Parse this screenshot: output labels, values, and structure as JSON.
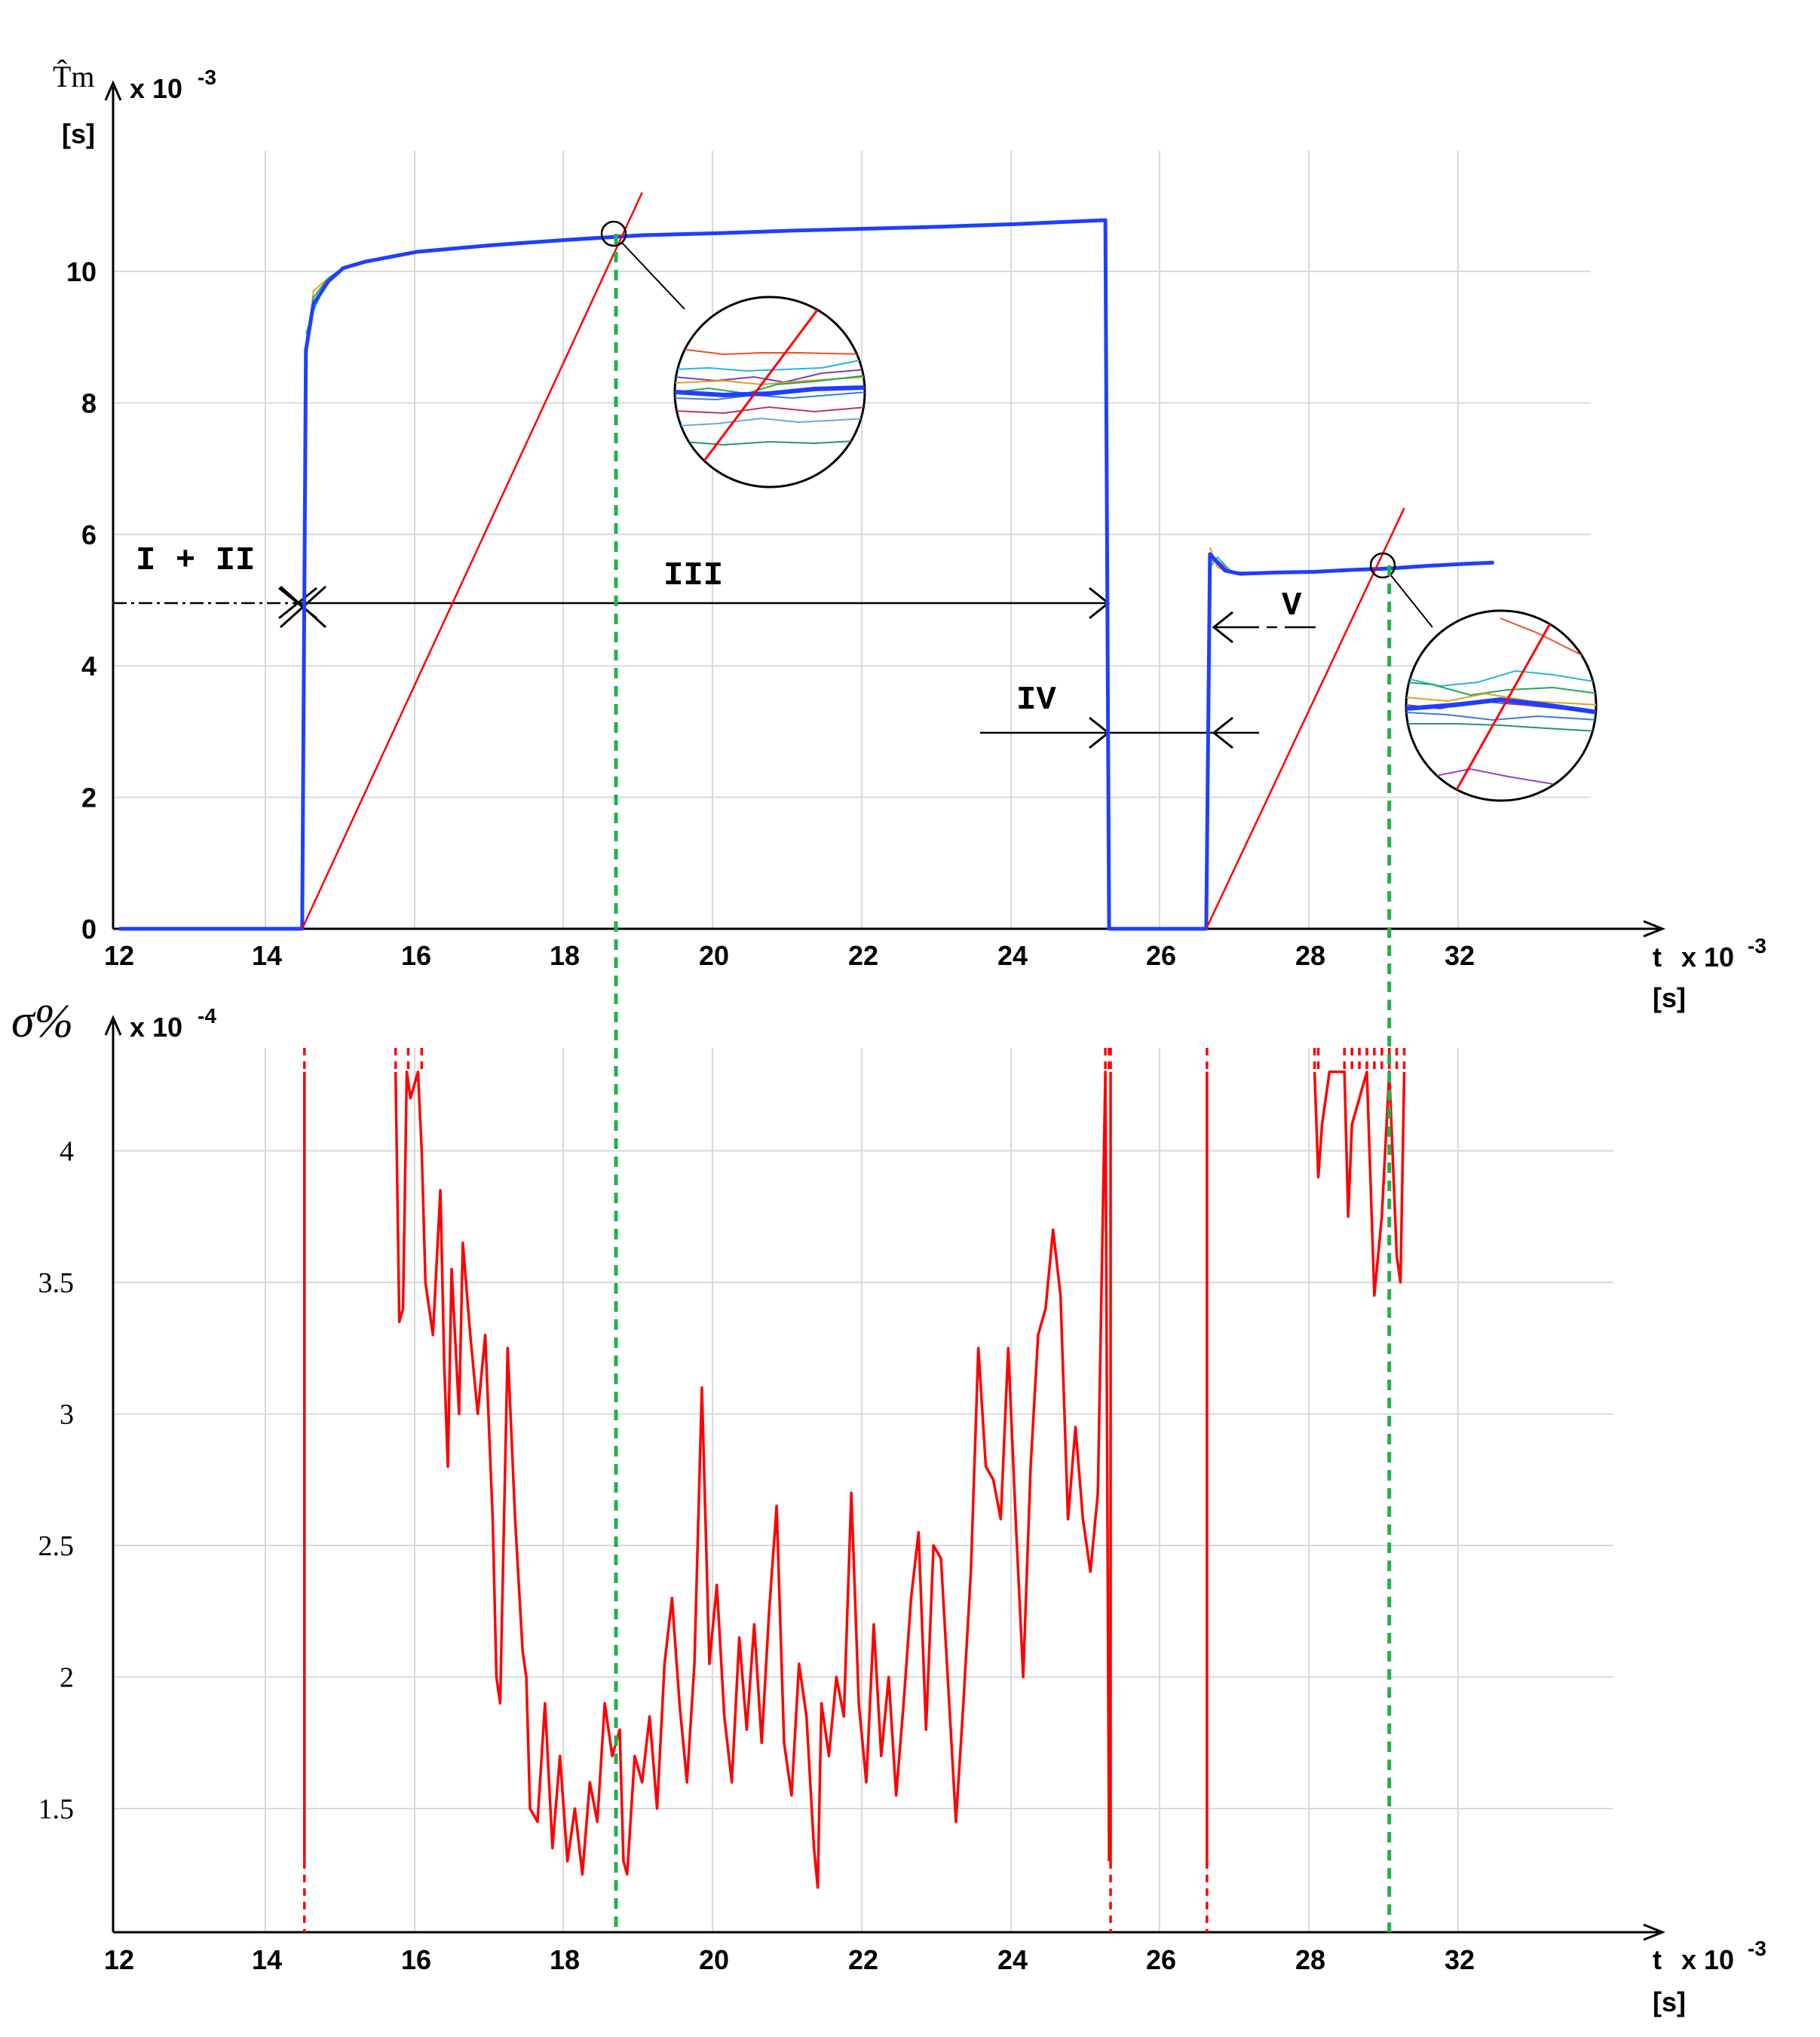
{
  "chart_data": [
    {
      "type": "line",
      "ylabel": "T̂m",
      "ylabel_unit": "[s]",
      "y_scale_text": "x 10",
      "y_scale_exp": "-3",
      "xlabel": "t",
      "x_scale_text": "x 10",
      "x_scale_exp": "-3",
      "x_unit": "[s]",
      "xlim": [
        12,
        32
      ],
      "ylim": [
        0,
        11
      ],
      "x_ticks": [
        "12",
        "14",
        "16",
        "18",
        "20",
        "22",
        "24",
        "26",
        "28",
        "32"
      ],
      "y_ticks": [
        "0",
        "2",
        "4",
        "6",
        "8",
        "10"
      ],
      "grid": true,
      "series": [
        {
          "color": "#1f3fff",
          "points": [
            [
              12,
              0
            ],
            [
              14.45,
              0
            ],
            [
              14.5,
              8.8
            ],
            [
              14.6,
              9.5
            ],
            [
              14.8,
              9.85
            ],
            [
              15.0,
              10.05
            ],
            [
              15.3,
              10.15
            ],
            [
              16.0,
              10.3
            ],
            [
              17.0,
              10.4
            ],
            [
              18.0,
              10.48
            ],
            [
              19.0,
              10.55
            ],
            [
              20.0,
              10.58
            ],
            [
              21.0,
              10.62
            ],
            [
              22.0,
              10.65
            ],
            [
              23.0,
              10.68
            ],
            [
              24.0,
              10.72
            ],
            [
              25.2,
              10.78
            ],
            [
              25.25,
              0
            ],
            [
              26.55,
              0
            ],
            [
              26.6,
              5.7
            ],
            [
              26.8,
              5.45
            ],
            [
              27.0,
              5.4
            ],
            [
              27.5,
              5.42
            ],
            [
              28.0,
              5.43
            ],
            [
              28.5,
              5.46
            ],
            [
              29.0,
              5.48
            ],
            [
              29.5,
              5.52
            ],
            [
              30.0,
              5.55
            ],
            [
              30.4,
              5.57
            ]
          ]
        },
        {
          "color": "#ff0000",
          "points": [
            [
              14.45,
              0
            ],
            [
              19.0,
              11.2
            ]
          ]
        },
        {
          "color": "#ff0000",
          "points": [
            [
              26.55,
              0
            ],
            [
              29.2,
              6.4
            ]
          ]
        }
      ],
      "markers_at_x": [
        18.65,
        29.0
      ],
      "annotations": [
        "I + II",
        "III",
        "IV",
        "V"
      ]
    },
    {
      "type": "line",
      "ylabel": "σ%",
      "y_scale_text": "x 10",
      "y_scale_exp": "-4",
      "xlabel": "t",
      "x_scale_text": "x 10",
      "x_scale_exp": "-3",
      "x_unit": "[s]",
      "xlim": [
        12,
        32
      ],
      "ylim": [
        1.1,
        4.4
      ],
      "x_ticks": [
        "12",
        "14",
        "16",
        "18",
        "20",
        "22",
        "24",
        "26",
        "28",
        "32"
      ],
      "y_ticks": [
        "1.5",
        "2",
        "2.5",
        "3",
        "3.5",
        "4"
      ],
      "grid": true,
      "series": [
        {
          "color": "#ff0000",
          "points": [
            [
              15.7,
              4.3
            ],
            [
              15.75,
              3.35
            ],
            [
              15.8,
              3.4
            ],
            [
              15.85,
              4.3
            ],
            [
              15.9,
              4.2
            ],
            [
              16.0,
              4.3
            ],
            [
              16.05,
              4.0
            ],
            [
              16.1,
              3.5
            ],
            [
              16.2,
              3.3
            ],
            [
              16.3,
              3.85
            ],
            [
              16.35,
              3.2
            ],
            [
              16.4,
              2.8
            ],
            [
              16.45,
              3.55
            ],
            [
              16.55,
              3.0
            ],
            [
              16.6,
              3.65
            ],
            [
              16.7,
              3.3
            ],
            [
              16.8,
              3.0
            ],
            [
              16.9,
              3.3
            ],
            [
              17.0,
              2.6
            ],
            [
              17.05,
              2.0
            ],
            [
              17.1,
              1.9
            ],
            [
              17.2,
              3.25
            ],
            [
              17.3,
              2.6
            ],
            [
              17.4,
              2.1
            ],
            [
              17.45,
              2.0
            ],
            [
              17.5,
              1.5
            ],
            [
              17.6,
              1.45
            ],
            [
              17.7,
              1.9
            ],
            [
              17.8,
              1.35
            ],
            [
              17.9,
              1.7
            ],
            [
              18.0,
              1.3
            ],
            [
              18.1,
              1.5
            ],
            [
              18.2,
              1.25
            ],
            [
              18.3,
              1.6
            ],
            [
              18.4,
              1.45
            ],
            [
              18.5,
              1.9
            ],
            [
              18.6,
              1.7
            ],
            [
              18.7,
              1.8
            ],
            [
              18.75,
              1.3
            ],
            [
              18.8,
              1.25
            ],
            [
              18.9,
              1.7
            ],
            [
              19.0,
              1.6
            ],
            [
              19.1,
              1.85
            ],
            [
              19.2,
              1.5
            ],
            [
              19.3,
              2.05
            ],
            [
              19.4,
              2.3
            ],
            [
              19.5,
              1.9
            ],
            [
              19.6,
              1.6
            ],
            [
              19.7,
              2.05
            ],
            [
              19.8,
              3.1
            ],
            [
              19.9,
              2.05
            ],
            [
              20.0,
              2.35
            ],
            [
              20.1,
              1.85
            ],
            [
              20.2,
              1.6
            ],
            [
              20.3,
              2.15
            ],
            [
              20.4,
              1.8
            ],
            [
              20.5,
              2.2
            ],
            [
              20.6,
              1.75
            ],
            [
              20.7,
              2.25
            ],
            [
              20.8,
              2.65
            ],
            [
              20.9,
              1.75
            ],
            [
              21.0,
              1.55
            ],
            [
              21.1,
              2.05
            ],
            [
              21.2,
              1.85
            ],
            [
              21.3,
              1.35
            ],
            [
              21.35,
              1.2
            ],
            [
              21.4,
              1.9
            ],
            [
              21.5,
              1.7
            ],
            [
              21.6,
              2.0
            ],
            [
              21.7,
              1.85
            ],
            [
              21.8,
              2.7
            ],
            [
              21.9,
              1.9
            ],
            [
              22.0,
              1.6
            ],
            [
              22.1,
              2.2
            ],
            [
              22.2,
              1.7
            ],
            [
              22.3,
              2.0
            ],
            [
              22.4,
              1.55
            ],
            [
              22.5,
              1.9
            ],
            [
              22.6,
              2.3
            ],
            [
              22.7,
              2.55
            ],
            [
              22.8,
              1.8
            ],
            [
              22.9,
              2.5
            ],
            [
              23.0,
              2.45
            ],
            [
              23.1,
              1.95
            ],
            [
              23.2,
              1.45
            ],
            [
              23.3,
              1.9
            ],
            [
              23.4,
              2.4
            ],
            [
              23.5,
              3.25
            ],
            [
              23.6,
              2.8
            ],
            [
              23.7,
              2.75
            ],
            [
              23.8,
              2.6
            ],
            [
              23.9,
              3.25
            ],
            [
              24.0,
              2.6
            ],
            [
              24.1,
              2.0
            ],
            [
              24.2,
              2.8
            ],
            [
              24.3,
              3.3
            ],
            [
              24.4,
              3.4
            ],
            [
              24.5,
              3.7
            ],
            [
              24.6,
              3.45
            ],
            [
              24.7,
              2.6
            ],
            [
              24.8,
              2.95
            ],
            [
              24.9,
              2.6
            ],
            [
              25.0,
              2.4
            ],
            [
              25.1,
              2.7
            ],
            [
              25.2,
              4.3
            ],
            [
              25.25,
              1.3
            ]
          ]
        },
        {
          "color": "#ff0000",
          "points": [
            [
              28.0,
              4.3
            ],
            [
              28.05,
              3.9
            ],
            [
              28.1,
              4.1
            ],
            [
              28.2,
              4.3
            ],
            [
              28.4,
              4.3
            ],
            [
              28.45,
              3.75
            ],
            [
              28.5,
              4.1
            ],
            [
              28.7,
              4.3
            ],
            [
              28.8,
              3.45
            ],
            [
              28.9,
              3.75
            ],
            [
              29.0,
              4.3
            ],
            [
              29.1,
              3.6
            ],
            [
              29.15,
              3.5
            ],
            [
              29.2,
              4.3
            ]
          ]
        }
      ],
      "markers_at_x": [
        18.65,
        29.0
      ]
    }
  ]
}
